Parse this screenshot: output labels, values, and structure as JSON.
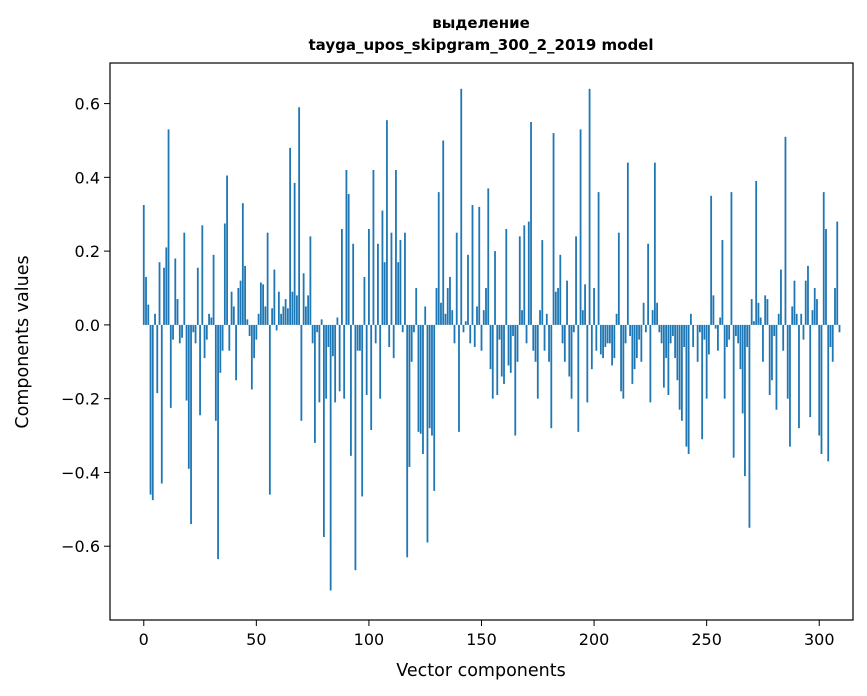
{
  "chart_data": {
    "type": "bar",
    "title": "выделение",
    "subtitle": "tayga_upos_skipgram_300_2_2019 model",
    "xlabel": "Vector components",
    "ylabel": "Components values",
    "xlim": [
      -15,
      315
    ],
    "ylim": [
      -0.8,
      0.71
    ],
    "xticks": [
      0,
      50,
      100,
      150,
      200,
      250,
      300
    ],
    "xtick_labels": [
      "0",
      "50",
      "100",
      "150",
      "200",
      "250",
      "300"
    ],
    "yticks": [
      -0.6,
      -0.4,
      -0.2,
      0.0,
      0.2,
      0.4,
      0.6
    ],
    "ytick_labels": [
      "−0.6",
      "−0.4",
      "−0.2",
      "0.0",
      "0.2",
      "0.4",
      "0.6"
    ],
    "bar_color": "#1f77b4",
    "values": [
      0.325,
      0.13,
      0.055,
      -0.46,
      -0.475,
      0.03,
      -0.185,
      0.17,
      -0.43,
      0.155,
      0.21,
      0.53,
      -0.225,
      -0.04,
      0.18,
      0.07,
      -0.05,
      -0.035,
      0.25,
      -0.205,
      -0.39,
      -0.54,
      -0.02,
      -0.05,
      0.155,
      -0.245,
      0.27,
      -0.09,
      -0.04,
      0.03,
      0.02,
      0.19,
      -0.26,
      -0.635,
      -0.13,
      -0.07,
      0.275,
      0.405,
      -0.07,
      0.09,
      0.05,
      -0.15,
      0.1,
      0.12,
      0.33,
      0.16,
      0.015,
      -0.03,
      -0.175,
      -0.09,
      -0.04,
      0.03,
      0.115,
      0.11,
      0.05,
      0.25,
      -0.46,
      0.045,
      0.15,
      -0.015,
      0.09,
      0.03,
      0.05,
      0.07,
      0.045,
      0.48,
      0.09,
      0.385,
      0.08,
      0.59,
      -0.26,
      0.14,
      0.05,
      0.08,
      0.24,
      -0.05,
      -0.32,
      -0.02,
      -0.21,
      0.015,
      -0.575,
      -0.2,
      -0.06,
      -0.72,
      -0.085,
      -0.21,
      0.02,
      -0.18,
      0.26,
      -0.2,
      0.42,
      0.355,
      -0.355,
      0.22,
      -0.665,
      -0.07,
      -0.07,
      -0.465,
      0.13,
      -0.19,
      0.26,
      -0.285,
      0.42,
      -0.05,
      0.22,
      -0.2,
      0.31,
      0.17,
      0.555,
      -0.06,
      0.25,
      -0.09,
      0.42,
      0.17,
      0.23,
      -0.02,
      0.25,
      -0.63,
      -0.385,
      -0.1,
      -0.02,
      0.1,
      -0.29,
      -0.295,
      -0.35,
      0.05,
      -0.59,
      -0.28,
      -0.3,
      -0.45,
      0.1,
      0.36,
      0.06,
      0.5,
      0.03,
      0.1,
      0.13,
      0.04,
      -0.05,
      0.25,
      -0.29,
      0.64,
      -0.02,
      0.01,
      0.19,
      -0.05,
      0.325,
      -0.06,
      0.05,
      0.32,
      -0.07,
      0.04,
      0.1,
      0.37,
      -0.12,
      -0.2,
      0.2,
      -0.19,
      -0.04,
      -0.14,
      -0.16,
      0.26,
      -0.11,
      -0.13,
      -0.03,
      -0.3,
      -0.1,
      0.24,
      0.04,
      0.27,
      -0.05,
      0.28,
      0.55,
      -0.07,
      -0.1,
      -0.2,
      0.04,
      0.23,
      -0.07,
      0.03,
      -0.1,
      -0.28,
      0.52,
      0.09,
      0.1,
      0.19,
      -0.05,
      -0.1,
      0.12,
      -0.14,
      -0.2,
      -0.02,
      0.24,
      -0.29,
      0.53,
      0.04,
      0.11,
      -0.21,
      0.64,
      -0.12,
      0.1,
      -0.07,
      0.36,
      -0.08,
      -0.09,
      -0.06,
      -0.05,
      -0.05,
      -0.11,
      -0.09,
      0.03,
      0.25,
      -0.18,
      -0.2,
      -0.05,
      0.44,
      -0.03,
      -0.16,
      -0.12,
      -0.09,
      -0.04,
      -0.1,
      0.06,
      -0.02,
      0.22,
      -0.21,
      0.04,
      0.44,
      0.06,
      -0.02,
      -0.05,
      -0.17,
      -0.09,
      -0.19,
      -0.05,
      -0.03,
      -0.09,
      -0.15,
      -0.23,
      -0.26,
      -0.06,
      -0.33,
      -0.35,
      0.03,
      -0.06,
      0.0,
      -0.1,
      -0.02,
      -0.31,
      -0.04,
      -0.2,
      -0.08,
      0.35,
      0.08,
      -0.01,
      -0.07,
      0.02,
      0.23,
      -0.2,
      -0.06,
      -0.04,
      0.36,
      -0.36,
      -0.03,
      -0.05,
      -0.12,
      -0.24,
      -0.41,
      -0.06,
      -0.55,
      0.07,
      0.01,
      0.39,
      0.06,
      0.02,
      -0.1,
      0.08,
      0.07,
      -0.19,
      -0.15,
      -0.03,
      -0.23,
      0.03,
      0.15,
      -0.07,
      0.51,
      -0.2,
      -0.33,
      0.05,
      0.12,
      0.03,
      -0.28,
      0.03,
      -0.04,
      0.12,
      0.16,
      -0.25,
      0.04,
      0.1,
      0.07,
      -0.3,
      -0.35,
      0.36,
      0.26,
      -0.37,
      -0.06,
      -0.1,
      0.1,
      0.28,
      -0.02
    ]
  }
}
